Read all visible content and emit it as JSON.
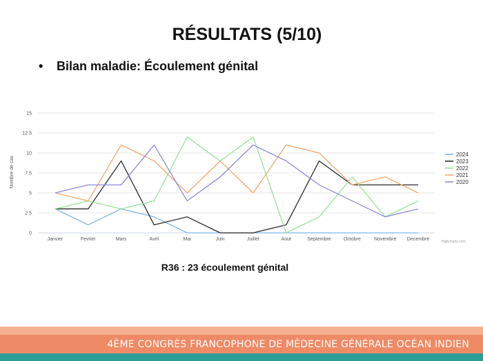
{
  "slide": {
    "title": "RÉSULTATS (5/10)",
    "bullet": "Bilan maladie: Écoulement génital",
    "caption": "R36 : 23 écoulement génital",
    "footer": "4ème congrès francophone de médecine générale océan indien"
  },
  "chart_data": {
    "type": "line",
    "title": "",
    "xlabel": "",
    "ylabel": "Nombre de cas",
    "ylim": [
      0,
      15
    ],
    "y_ticks": [
      0,
      2.5,
      5,
      7.5,
      10,
      12.5,
      15
    ],
    "y_tick_labels": [
      "0",
      "2.5",
      "5",
      "7.5",
      "10",
      "12.5",
      "15"
    ],
    "categories": [
      "Janvier",
      "Fevrier",
      "Mars",
      "Avril",
      "Mai",
      "Juin",
      "Juillet",
      "Aout",
      "Septembre",
      "Octobre",
      "Novembre",
      "Decembre"
    ],
    "grid": true,
    "legend_position": "right",
    "credits": "Highcharts.com",
    "series": [
      {
        "name": "2024",
        "color": "#7fb6e3",
        "values": [
          3,
          1,
          3,
          2,
          0,
          0,
          0,
          0,
          0,
          0,
          0,
          0
        ]
      },
      {
        "name": "2023",
        "color": "#2a2a2a",
        "values": [
          3,
          3,
          9,
          1,
          2,
          0,
          0,
          1,
          9,
          6,
          6,
          6
        ]
      },
      {
        "name": "2022",
        "color": "#96e396",
        "values": [
          3,
          4,
          3,
          4,
          12,
          9,
          12,
          0,
          2,
          7,
          2,
          4
        ]
      },
      {
        "name": "2021",
        "color": "#f0a868",
        "values": [
          5,
          4,
          11,
          9,
          5,
          9,
          5,
          11,
          10,
          6,
          7,
          5
        ]
      },
      {
        "name": "2020",
        "color": "#8a8ad8",
        "values": [
          5,
          6,
          6,
          11,
          4,
          7,
          11,
          9,
          6,
          4,
          2,
          3
        ]
      }
    ]
  }
}
